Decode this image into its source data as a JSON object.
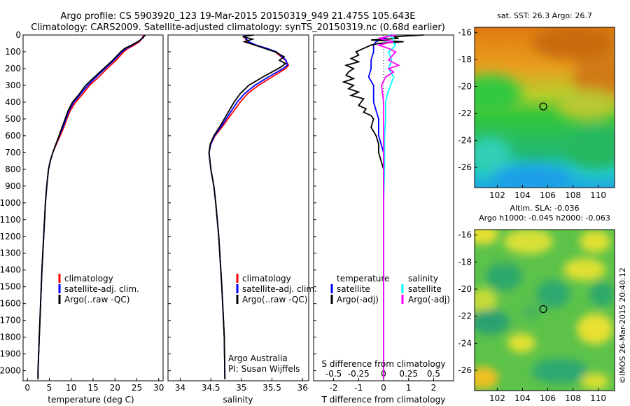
{
  "title_line1": "Argo profile: CS 5903920_123 19-Mar-2015 20150319_949 21.475S 105.643E",
  "title_line2": "Climatology: CARS2009. Satellite-adjusted climatology: synTS_20150319.nc (0.68d earlier)",
  "imos_stamp": "©IMOS 26-Mar-2015 20:40:12",
  "colors": {
    "climatology": "#ff0000",
    "satellite": "#0000ff",
    "argo": "#000000",
    "sal_satellite": "#00ffff",
    "sal_argo": "#ff00ff"
  },
  "chart_data": [
    {
      "type": "line",
      "id": "temperature",
      "xlabel": "temperature (deg C)",
      "xlim": [
        -1,
        31
      ],
      "ylim": [
        2060,
        0
      ],
      "xticks": [
        "0",
        "5",
        "10",
        "15",
        "20",
        "25",
        "30"
      ],
      "xtick_values": [
        0,
        5,
        10,
        15,
        20,
        25,
        30
      ],
      "yticks": [
        "0",
        "100",
        "200",
        "300",
        "400",
        "500",
        "600",
        "700",
        "800",
        "900",
        "1000",
        "1100",
        "1200",
        "1300",
        "1400",
        "1500",
        "1600",
        "1700",
        "1800",
        "1900",
        "2000"
      ],
      "ytick_values": [
        0,
        100,
        200,
        300,
        400,
        500,
        600,
        700,
        800,
        900,
        1000,
        1100,
        1200,
        1300,
        1400,
        1500,
        1600,
        1700,
        1800,
        1900,
        2000
      ],
      "legend": [
        "climatology",
        "satellite-adj. clim.",
        "Argo(..raw -QC)"
      ],
      "series": [
        {
          "name": "climatology",
          "color_key": "climatology",
          "depth": [
            0,
            20,
            40,
            60,
            80,
            100,
            150,
            200,
            250,
            300,
            350,
            400,
            450,
            500,
            550,
            600,
            650,
            700,
            750,
            800,
            900,
            1000,
            1200,
            1400,
            1600,
            1800,
            2000,
            2050
          ],
          "values": [
            26.5,
            26.2,
            25.6,
            24.4,
            23.0,
            22.0,
            20.3,
            18.2,
            16.3,
            14.2,
            12.7,
            11.0,
            9.8,
            9.0,
            8.3,
            7.5,
            6.6,
            5.8,
            5.2,
            4.8,
            4.4,
            4.1,
            3.7,
            3.3,
            3.0,
            2.7,
            2.4,
            2.4
          ]
        },
        {
          "name": "satellite-adj. clim.",
          "color_key": "satellite",
          "depth": [
            0,
            20,
            40,
            60,
            80,
            100,
            150,
            200,
            250,
            300,
            350,
            400,
            450,
            500,
            550,
            600,
            650,
            700,
            750,
            800,
            900,
            1000,
            1200,
            1400,
            1600,
            1800,
            2000,
            2050
          ],
          "values": [
            26.8,
            26.2,
            25.3,
            24.0,
            22.6,
            21.6,
            19.8,
            17.7,
            15.7,
            13.8,
            12.2,
            10.6,
            9.5,
            8.8,
            8.1,
            7.3,
            6.5,
            5.8,
            5.2,
            4.8,
            4.4,
            4.1,
            3.7,
            3.3,
            3.0,
            2.7,
            2.4,
            2.4
          ]
        },
        {
          "name": "Argo(..raw -QC)",
          "color_key": "argo",
          "depth": [
            0,
            20,
            40,
            60,
            80,
            100,
            150,
            200,
            250,
            300,
            350,
            400,
            450,
            500,
            550,
            600,
            650,
            700,
            750,
            800,
            900,
            1000,
            1200,
            1400,
            1600,
            1800,
            2000,
            2050
          ],
          "values": [
            26.9,
            26.3,
            25.2,
            23.8,
            22.2,
            21.3,
            19.5,
            17.4,
            15.3,
            13.3,
            11.9,
            10.3,
            9.3,
            8.6,
            7.9,
            7.2,
            6.5,
            5.8,
            5.2,
            4.8,
            4.4,
            4.1,
            3.7,
            3.3,
            3.0,
            2.7,
            2.4,
            2.4
          ]
        }
      ]
    },
    {
      "type": "line",
      "id": "salinity",
      "xlabel": "salinity",
      "xlim": [
        33.8,
        36.1
      ],
      "ylim": [
        2060,
        0
      ],
      "xticks": [
        "34",
        "34.5",
        "35",
        "35.5",
        "36"
      ],
      "xtick_values": [
        34,
        34.5,
        35,
        35.5,
        36
      ],
      "legend": [
        "climatology",
        "satellite-adj. clim.",
        "Argo(..raw -QC)"
      ],
      "annotation": [
        "Argo Australia",
        "PI: Susan Wijffels"
      ],
      "series": [
        {
          "name": "climatology",
          "color_key": "climatology",
          "depth": [
            0,
            20,
            40,
            60,
            80,
            100,
            150,
            180,
            200,
            250,
            300,
            350,
            400,
            450,
            500,
            550,
            600,
            650,
            700,
            800,
            900,
            1000,
            1200,
            1500,
            1800,
            2050
          ],
          "values": [
            35.05,
            35.06,
            35.1,
            35.22,
            35.4,
            35.55,
            35.72,
            35.77,
            35.72,
            35.5,
            35.28,
            35.1,
            34.98,
            34.88,
            34.78,
            34.68,
            34.57,
            34.5,
            34.47,
            34.5,
            34.55,
            34.58,
            34.63,
            34.68,
            34.72,
            34.73
          ]
        },
        {
          "name": "satellite-adj. clim.",
          "color_key": "satellite",
          "depth": [
            0,
            20,
            40,
            60,
            80,
            100,
            150,
            180,
            200,
            250,
            300,
            350,
            400,
            450,
            500,
            550,
            600,
            650,
            700,
            800,
            900,
            1000,
            1200,
            1500,
            1800,
            2050
          ],
          "values": [
            35.05,
            35.07,
            35.12,
            35.24,
            35.42,
            35.57,
            35.73,
            35.75,
            35.68,
            35.44,
            35.22,
            35.05,
            34.93,
            34.84,
            34.75,
            34.66,
            34.56,
            34.5,
            34.47,
            34.5,
            34.55,
            34.58,
            34.63,
            34.68,
            34.72,
            34.73
          ]
        },
        {
          "name": "Argo(..raw -QC)",
          "color_key": "argo",
          "depth": [
            0,
            10,
            25,
            40,
            60,
            80,
            100,
            130,
            150,
            170,
            190,
            210,
            250,
            300,
            350,
            400,
            450,
            500,
            550,
            600,
            650,
            700,
            800,
            900,
            1000,
            1200,
            1500,
            1800,
            2050
          ],
          "values": [
            35.2,
            35.02,
            35.18,
            35.05,
            35.22,
            35.38,
            35.55,
            35.7,
            35.62,
            35.72,
            35.65,
            35.55,
            35.35,
            35.12,
            34.98,
            34.88,
            34.8,
            34.72,
            34.64,
            34.55,
            34.49,
            34.47,
            34.5,
            34.55,
            34.58,
            34.63,
            34.68,
            34.72,
            34.73
          ]
        }
      ]
    },
    {
      "type": "line",
      "id": "differences",
      "xlabel": "T difference from climatology",
      "xlabel_top": "S difference from climatology",
      "xlim": [
        -2.8,
        2.8
      ],
      "ylim": [
        2060,
        0
      ],
      "xticks": [
        "-2",
        "-1",
        "0",
        "1",
        "2"
      ],
      "xtick_values": [
        -2,
        -1,
        0,
        1,
        2
      ],
      "xticks_top": [
        "-0.5",
        "-0.25",
        "0",
        "0.25",
        "0.5"
      ],
      "xtick_top_values": [
        -0.5,
        -0.25,
        0,
        0.25,
        0.5
      ],
      "legend_temp_title": "temperature",
      "legend_sal_title": "salinity",
      "legend_temp": [
        "satellite",
        "Argo(-adj)"
      ],
      "legend_sal": [
        "satellite",
        "Argo(-adj)"
      ],
      "series": [
        {
          "name": "temperature satellite",
          "color_key": "satellite",
          "depth": [
            0,
            20,
            40,
            60,
            80,
            100,
            150,
            200,
            250,
            300,
            400,
            500,
            600,
            700,
            800,
            1000,
            1500,
            2050
          ],
          "values": [
            0.3,
            0.0,
            -0.3,
            -0.4,
            -0.4,
            -0.4,
            -0.5,
            -0.5,
            -0.6,
            -0.4,
            -0.4,
            -0.2,
            -0.2,
            0.0,
            0.0,
            0.0,
            0.0,
            0.0
          ]
        },
        {
          "name": "temperature Argo(-adj)",
          "color_key": "argo",
          "depth": [
            0,
            10,
            20,
            30,
            40,
            50,
            60,
            80,
            100,
            120,
            140,
            160,
            180,
            200,
            220,
            240,
            260,
            280,
            300,
            320,
            340,
            360,
            380,
            400,
            420,
            440,
            460,
            480,
            500,
            550,
            600,
            650,
            700,
            750,
            800,
            900,
            1000,
            1500,
            2050
          ],
          "values": [
            1.6,
            0.4,
            0.6,
            -0.5,
            0.8,
            -0.2,
            -0.5,
            -0.8,
            -1.1,
            -1.0,
            -1.3,
            -1.0,
            -1.5,
            -1.2,
            -1.4,
            -1.5,
            -1.2,
            -1.6,
            -1.2,
            -1.4,
            -1.0,
            -1.3,
            -0.8,
            -0.9,
            -1.0,
            -0.7,
            -0.8,
            -0.5,
            -0.4,
            -0.5,
            -0.3,
            -0.2,
            -0.2,
            -0.1,
            0.0,
            0.0,
            0.0,
            0.0,
            0.0
          ]
        },
        {
          "name": "salinity satellite",
          "color_key": "sal_satellite",
          "depth": [
            0,
            20,
            40,
            60,
            80,
            100,
            150,
            200,
            250,
            300,
            350,
            400,
            500,
            600,
            700,
            800,
            1000,
            1500,
            2050
          ],
          "values": [
            0.05,
            0.1,
            0.09,
            0.12,
            0.09,
            0.05,
            0.08,
            0.05,
            0.1,
            0.07,
            0.04,
            0.02,
            0.02,
            0.01,
            0.01,
            0.01,
            0.0,
            0.0,
            0.0
          ]
        },
        {
          "name": "salinity Argo(-adj)",
          "color_key": "sal_argo",
          "depth": [
            0,
            20,
            40,
            60,
            80,
            100,
            150,
            180,
            200,
            220,
            250,
            300,
            400,
            500,
            600,
            700,
            800,
            1000,
            1500,
            2050
          ],
          "values": [
            0.12,
            -0.05,
            0.1,
            -0.05,
            0.05,
            0.12,
            0.05,
            0.15,
            0.05,
            0.1,
            0.02,
            -0.02,
            0.0,
            0.0,
            0.0,
            0.0,
            0.0,
            0.0,
            0.0,
            0.0
          ]
        }
      ]
    },
    {
      "type": "heatmap",
      "id": "sst_map",
      "title": "sat. SST: 26.3  Argo: 26.7",
      "xticks": [
        "102",
        "104",
        "106",
        "108",
        "110"
      ],
      "xtick_values": [
        102,
        104,
        106,
        108,
        110
      ],
      "yticks": [
        "-16",
        "-18",
        "-20",
        "-22",
        "-24",
        "-26"
      ],
      "ytick_values": [
        -16,
        -18,
        -20,
        -22,
        -24,
        -26
      ],
      "xlim": [
        100.2,
        111.3
      ],
      "ylim": [
        -27.5,
        -15.6
      ],
      "marker": {
        "lon": 105.643,
        "lat": -21.475
      }
    },
    {
      "type": "heatmap",
      "id": "sla_map",
      "title": "Altim. SLA: -0.036",
      "subtitle": "Argo h1000: -0.045 h2000: -0.063",
      "xticks": [
        "102",
        "104",
        "106",
        "108",
        "110"
      ],
      "xtick_values": [
        102,
        104,
        106,
        108,
        110
      ],
      "yticks": [
        "-16",
        "-18",
        "-20",
        "-22",
        "-24",
        "-26"
      ],
      "ytick_values": [
        -16,
        -18,
        -20,
        -22,
        -24,
        -26
      ],
      "xlim": [
        100.2,
        111.3
      ],
      "ylim": [
        -27.5,
        -15.6
      ],
      "marker": {
        "lon": 105.643,
        "lat": -21.475
      }
    }
  ]
}
